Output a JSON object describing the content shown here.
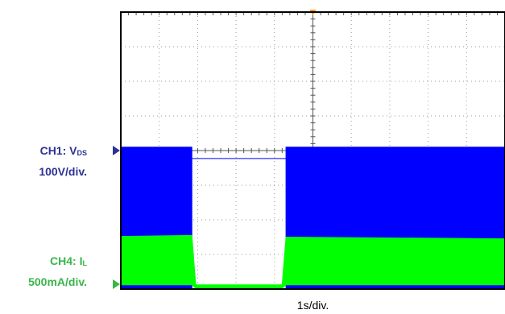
{
  "chart_data": {
    "type": "line",
    "xlabel": "1s/div.",
    "divisions": {
      "x": 10,
      "y": 8
    },
    "grid": true,
    "x_unit": "div",
    "series": [
      {
        "channel": "CH1",
        "name_main": "CH1: V",
        "name_sub": "DS",
        "scale": "100V/div.",
        "color": "#0000ff",
        "display": "switching-envelope",
        "x": [
          0,
          1.85,
          1.85,
          4.3,
          4.3,
          10
        ],
        "low": [
          0,
          0,
          3.77,
          3.77,
          0,
          0
        ],
        "high": [
          4.1,
          4.1,
          3.77,
          3.77,
          4.1,
          4.1
        ]
      },
      {
        "channel": "CH4",
        "name_main": "CH4: I",
        "name_sub": "L",
        "scale": "500mA/div.",
        "color": "#00ff00",
        "display": "switching-envelope",
        "x": [
          0,
          1.85,
          1.95,
          4.2,
          4.3,
          10
        ],
        "low": [
          0.12,
          0.12,
          0.03,
          0.03,
          0.12,
          0.12
        ],
        "high": [
          1.52,
          1.55,
          0.12,
          0.12,
          1.5,
          1.45
        ]
      }
    ],
    "markers": [
      {
        "name": "ch1-ground",
        "color": "#2e3192",
        "y_div": 4
      },
      {
        "name": "ch4-ground",
        "color": "#39b54a",
        "y_div": 0
      },
      {
        "name": "trigger",
        "color": "#f7941d",
        "x_div": 5
      }
    ]
  }
}
